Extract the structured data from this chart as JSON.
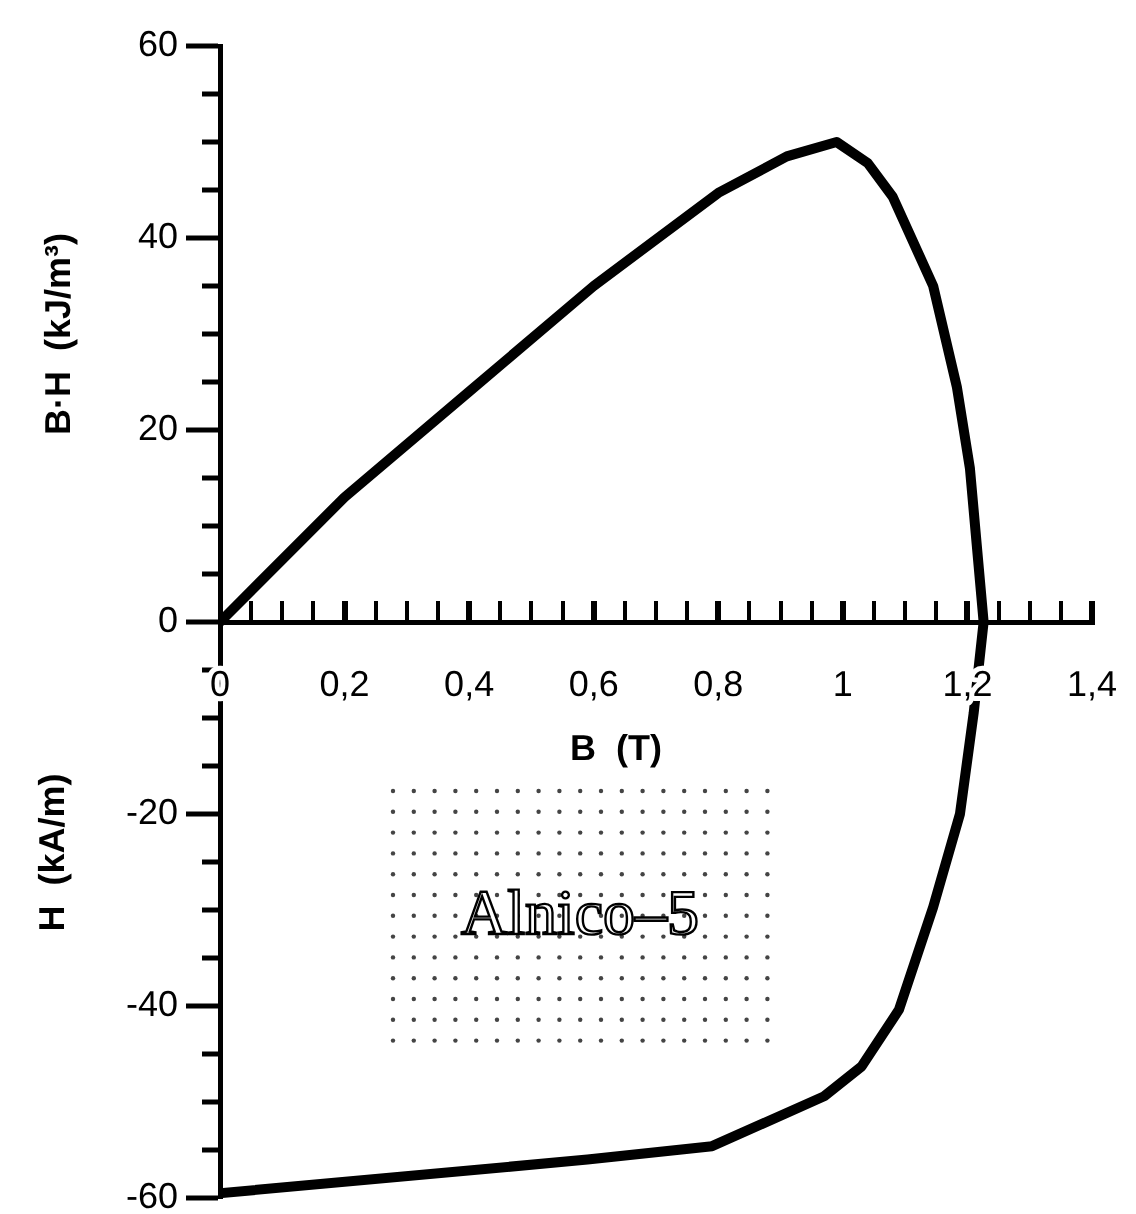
{
  "chart_data": {
    "type": "line",
    "xlabel": "B  (T)",
    "ylabel": "B·H  (kJ/m³)",
    "annotations": [
      "H  (kA/m)",
      "Alnico–5"
    ],
    "xlim": [
      0,
      1.4
    ],
    "ylim": [
      -60,
      60
    ],
    "xticks": [
      0,
      {
        "value": 0.05,
        "label": null
      },
      {
        "value": 0.1,
        "label": null
      },
      {
        "value": 0.15,
        "label": null
      },
      {
        "value": 0.2,
        "label": "0,2"
      },
      {
        "value": 0.25,
        "label": null
      },
      {
        "value": 0.3,
        "label": null
      },
      {
        "value": 0.35,
        "label": null
      },
      {
        "value": 0.4,
        "label": "0,4"
      },
      {
        "value": 0.45,
        "label": null
      },
      {
        "value": 0.5,
        "label": null
      },
      {
        "value": 0.55,
        "label": null
      },
      {
        "value": 0.6,
        "label": "0,6"
      },
      {
        "value": 0.65,
        "label": null
      },
      {
        "value": 0.7,
        "label": null
      },
      {
        "value": 0.75,
        "label": null
      },
      {
        "value": 0.8,
        "label": "0,8"
      },
      {
        "value": 0.85,
        "label": null
      },
      {
        "value": 0.9,
        "label": null
      },
      {
        "value": 0.95,
        "label": null
      },
      1,
      {
        "value": 1.05,
        "label": null
      },
      {
        "value": 1.1,
        "label": null
      },
      {
        "value": 1.15,
        "label": null
      },
      {
        "value": 1.2,
        "label": "1,2"
      },
      {
        "value": 1.25,
        "label": null
      },
      {
        "value": 1.3,
        "label": null
      },
      {
        "value": 1.35,
        "label": null
      },
      {
        "value": 1.4,
        "label": "1,4"
      }
    ],
    "yticks": [
      -60,
      {
        "value": -55,
        "label": null
      },
      {
        "value": -50,
        "label": null
      },
      {
        "value": -45,
        "label": null
      },
      -40,
      {
        "value": -35,
        "label": null
      },
      {
        "value": -30,
        "label": null
      },
      {
        "value": -25,
        "label": null
      },
      -20,
      {
        "value": -15,
        "label": null
      },
      {
        "value": -10,
        "label": null
      },
      {
        "value": -5,
        "label": null
      },
      0,
      {
        "value": 5,
        "label": null
      },
      {
        "value": 10,
        "label": null
      },
      {
        "value": 15,
        "label": null
      },
      20,
      {
        "value": 25,
        "label": null
      },
      {
        "value": 30,
        "label": null
      },
      {
        "value": 35,
        "label": null
      },
      40,
      {
        "value": 45,
        "label": null
      },
      {
        "value": 50,
        "label": null
      },
      {
        "value": 55,
        "label": null
      },
      60
    ],
    "marker": "none",
    "line_style": "solid",
    "series": [
      {
        "color": "#000000",
        "x": [
          0,
          0.59,
          0.79,
          0.97,
          1.03,
          1.09,
          1.145,
          1.188,
          1.21,
          1.226,
          1.204,
          1.183,
          1.145,
          1.08,
          1.04,
          0.99,
          0.91,
          0.8,
          0.6,
          0.4,
          0.2,
          0
        ],
        "values": [
          -59.5,
          -56,
          -54.6,
          -49.4,
          -46.3,
          -40.4,
          -29.7,
          -20,
          -9.5,
          0,
          16,
          24.5,
          35,
          44.3,
          47.8,
          50,
          48.5,
          44.7,
          35,
          24,
          13,
          0
        ]
      }
    ]
  }
}
